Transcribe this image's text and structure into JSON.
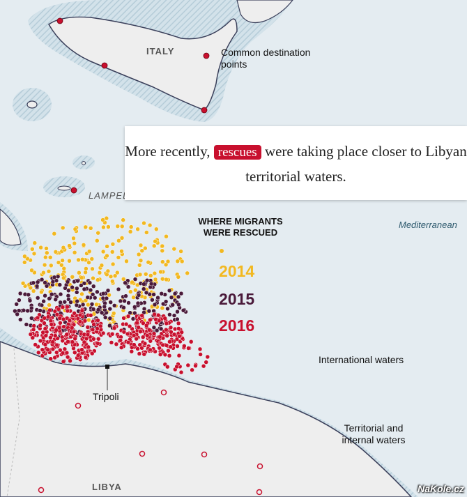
{
  "labels": {
    "italy": "ITALY",
    "lampedusa": "LAMPEDUSA",
    "libya": "LIBYA",
    "tripoli": "Tripoli",
    "mediterranean": "Mediterranean",
    "common_destination": "Common destination points",
    "international_waters": "International waters",
    "territorial_waters": "Territorial and internal waters"
  },
  "callout": {
    "before": "More recently,",
    "highlight": "rescues",
    "after": "were taking place closer to Libyan territorial waters."
  },
  "legend": {
    "title": "WHERE MIGRANTS WERE RESCUED",
    "years": [
      {
        "label": "2014",
        "color": "#f2b820"
      },
      {
        "label": "2015",
        "color": "#4a1a3a"
      },
      {
        "label": "2016",
        "color": "#c8102e"
      }
    ]
  },
  "colors": {
    "sea": "#e4ecf1",
    "land": "#eeeeee",
    "coast_hatch": "#b8cfd9",
    "destination_point": "#c8102e"
  },
  "watermark": "NaKole.cz"
}
